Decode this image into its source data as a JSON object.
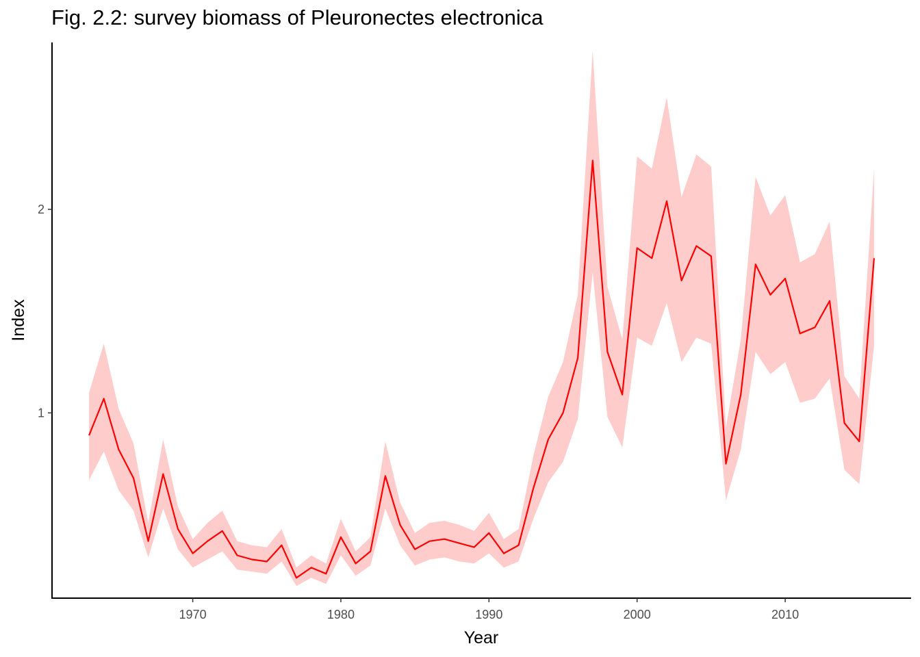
{
  "chart_data": {
    "type": "line",
    "title": "Fig. 2.2: survey biomass of Pleuronectes electronica",
    "xlabel": "Year",
    "ylabel": "Index",
    "xlim": [
      1960.5,
      2018.5
    ],
    "ylim": [
      0.09,
      2.82
    ],
    "x_ticks": [
      1970,
      1980,
      1990,
      2000,
      2010
    ],
    "y_ticks": [
      1,
      2
    ],
    "grid": false,
    "legend": "none",
    "line_color": "#ff0000",
    "band_color": "#ffcccc",
    "series": [
      {
        "x": [
          1963,
          1964,
          1965,
          1966,
          1967,
          1968,
          1969,
          1970,
          1971,
          1972,
          1973,
          1974,
          1975,
          1976,
          1977,
          1978,
          1979,
          1980,
          1981,
          1982,
          1983,
          1984,
          1985,
          1986,
          1987,
          1988,
          1989,
          1990,
          1991,
          1992,
          1993,
          1994,
          1995,
          1996,
          1997,
          1998,
          1999,
          2000,
          2001,
          2002,
          2003,
          2004,
          2005,
          2006,
          2007,
          2008,
          2009,
          2010,
          2011,
          2012,
          2013,
          2014,
          2015,
          2016
        ],
        "values": [
          0.89,
          1.07,
          0.82,
          0.68,
          0.37,
          0.7,
          0.43,
          0.31,
          0.37,
          0.42,
          0.3,
          0.28,
          0.27,
          0.35,
          0.19,
          0.24,
          0.21,
          0.39,
          0.26,
          0.32,
          0.69,
          0.45,
          0.33,
          0.37,
          0.38,
          0.36,
          0.34,
          0.41,
          0.31,
          0.35,
          0.63,
          0.87,
          1.0,
          1.27,
          2.24,
          1.3,
          1.09,
          1.81,
          1.76,
          2.04,
          1.65,
          1.82,
          1.77,
          0.75,
          1.09,
          1.73,
          1.58,
          1.66,
          1.39,
          1.42,
          1.55,
          0.95,
          0.86,
          1.76
        ],
        "lower": [
          0.67,
          0.81,
          0.62,
          0.52,
          0.29,
          0.53,
          0.33,
          0.24,
          0.28,
          0.32,
          0.23,
          0.22,
          0.21,
          0.27,
          0.15,
          0.19,
          0.16,
          0.3,
          0.2,
          0.25,
          0.53,
          0.35,
          0.25,
          0.28,
          0.29,
          0.27,
          0.26,
          0.31,
          0.24,
          0.27,
          0.48,
          0.66,
          0.76,
          0.97,
          1.69,
          0.98,
          0.83,
          1.37,
          1.33,
          1.54,
          1.25,
          1.37,
          1.34,
          0.57,
          0.82,
          1.3,
          1.19,
          1.25,
          1.05,
          1.07,
          1.17,
          0.72,
          0.65,
          1.33
        ],
        "upper": [
          1.1,
          1.34,
          1.02,
          0.85,
          0.46,
          0.87,
          0.54,
          0.38,
          0.46,
          0.52,
          0.37,
          0.35,
          0.34,
          0.43,
          0.24,
          0.3,
          0.26,
          0.48,
          0.32,
          0.39,
          0.86,
          0.56,
          0.41,
          0.46,
          0.47,
          0.45,
          0.42,
          0.51,
          0.38,
          0.43,
          0.79,
          1.08,
          1.25,
          1.58,
          2.78,
          1.62,
          1.36,
          2.26,
          2.2,
          2.55,
          2.06,
          2.27,
          2.21,
          0.93,
          1.36,
          2.16,
          1.97,
          2.07,
          1.74,
          1.78,
          1.94,
          1.18,
          1.07,
          2.2
        ]
      }
    ]
  }
}
